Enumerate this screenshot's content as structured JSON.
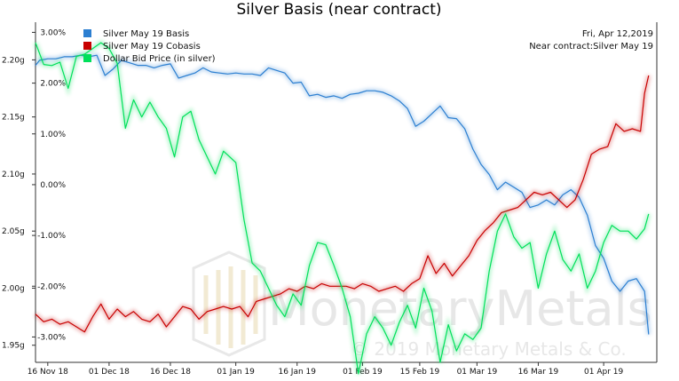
{
  "chart_data": {
    "type": "line",
    "title": "Silver Basis (near contract)",
    "date_text": "Fri, Apr 12,2019",
    "contract_text": "Near contract:Silver May 19",
    "watermark": {
      "brand": "MonetaryMetals",
      "copyright": "© 2019 Monetary Metals & Co."
    },
    "x_axis": {
      "range": [
        "2018-11-13",
        "2019-04-14"
      ],
      "tick_labels": [
        {
          "date": "2018-11-16",
          "label": "16 Nov 18"
        },
        {
          "date": "2018-12-01",
          "label": "01 Dec 18"
        },
        {
          "date": "2018-12-16",
          "label": "16 Dec 18"
        },
        {
          "date": "2019-01-01",
          "label": "01 Jan 19"
        },
        {
          "date": "2019-01-16",
          "label": "16 Jan 19"
        },
        {
          "date": "2019-02-01",
          "label": "01 Feb 19"
        },
        {
          "date": "2019-02-15",
          "label": "15 Feb 19"
        },
        {
          "date": "2019-03-01",
          "label": "01 Mar 19"
        },
        {
          "date": "2019-03-16",
          "label": "16 Mar 19"
        },
        {
          "date": "2019-04-01",
          "label": "01 Apr 19"
        }
      ]
    },
    "y_right": {
      "unit": "percent",
      "range": [
        -3.5,
        3.2
      ],
      "ticks": [
        3,
        2,
        1,
        0,
        -1,
        -2,
        -3
      ],
      "tick_labels": [
        "3.00%",
        "2.00%",
        "1.00%",
        "0.00%",
        "-1.00%",
        "-2.00%",
        "-3.00%"
      ]
    },
    "y_left": {
      "unit": "grams",
      "range": [
        1.935,
        2.233
      ],
      "ticks": [
        2.2,
        2.15,
        2.1,
        2.05,
        2.0,
        1.95
      ],
      "tick_labels": [
        "2.20g",
        "2.15g",
        "2.10g",
        "2.05g",
        "2.00g",
        "1.95g"
      ]
    },
    "legend": {
      "placement": "top-left",
      "items": [
        {
          "name": "Silver May 19 Basis",
          "color": "#2c7fd1"
        },
        {
          "name": "Silver May 19 Cobasis",
          "color": "#c80000"
        },
        {
          "name": "Dollar Bid Price (in silver)",
          "color": "#00e05a"
        }
      ]
    },
    "series": [
      {
        "name": "Silver May 19 Basis",
        "axis": "right",
        "color": "#2c7fd1",
        "points": [
          [
            "2018-11-13",
            2.35
          ],
          [
            "2018-11-14",
            2.45
          ],
          [
            "2018-11-16",
            2.48
          ],
          [
            "2018-11-18",
            2.48
          ],
          [
            "2018-11-20",
            2.52
          ],
          [
            "2018-11-22",
            2.52
          ],
          [
            "2018-11-24",
            2.55
          ],
          [
            "2018-11-26",
            2.52
          ],
          [
            "2018-11-28",
            2.55
          ],
          [
            "2018-11-30",
            2.15
          ],
          [
            "2018-12-02",
            2.28
          ],
          [
            "2018-12-04",
            2.45
          ],
          [
            "2018-12-06",
            2.4
          ],
          [
            "2018-12-08",
            2.35
          ],
          [
            "2018-12-10",
            2.35
          ],
          [
            "2018-12-12",
            2.3
          ],
          [
            "2018-12-14",
            2.35
          ],
          [
            "2018-12-16",
            2.38
          ],
          [
            "2018-12-18",
            2.1
          ],
          [
            "2018-12-20",
            2.15
          ],
          [
            "2018-12-22",
            2.2
          ],
          [
            "2018-12-24",
            2.3
          ],
          [
            "2018-12-26",
            2.22
          ],
          [
            "2018-12-28",
            2.2
          ],
          [
            "2018-12-30",
            2.18
          ],
          [
            "2019-01-01",
            2.2
          ],
          [
            "2019-01-03",
            2.18
          ],
          [
            "2019-01-05",
            2.18
          ],
          [
            "2019-01-07",
            2.15
          ],
          [
            "2019-01-09",
            2.3
          ],
          [
            "2019-01-11",
            2.25
          ],
          [
            "2019-01-13",
            2.2
          ],
          [
            "2019-01-15",
            2.0
          ],
          [
            "2019-01-17",
            2.02
          ],
          [
            "2019-01-19",
            1.75
          ],
          [
            "2019-01-21",
            1.78
          ],
          [
            "2019-01-23",
            1.72
          ],
          [
            "2019-01-25",
            1.75
          ],
          [
            "2019-01-27",
            1.7
          ],
          [
            "2019-01-29",
            1.78
          ],
          [
            "2019-01-31",
            1.8
          ],
          [
            "2019-02-02",
            1.85
          ],
          [
            "2019-02-04",
            1.85
          ],
          [
            "2019-02-06",
            1.82
          ],
          [
            "2019-02-08",
            1.75
          ],
          [
            "2019-02-10",
            1.65
          ],
          [
            "2019-02-12",
            1.5
          ],
          [
            "2019-02-14",
            1.15
          ],
          [
            "2019-02-16",
            1.25
          ],
          [
            "2019-02-18",
            1.4
          ],
          [
            "2019-02-20",
            1.55
          ],
          [
            "2019-02-22",
            1.32
          ],
          [
            "2019-02-24",
            1.3
          ],
          [
            "2019-02-26",
            1.1
          ],
          [
            "2019-02-28",
            0.7
          ],
          [
            "2019-03-02",
            0.4
          ],
          [
            "2019-03-04",
            0.2
          ],
          [
            "2019-03-06",
            -0.1
          ],
          [
            "2019-03-08",
            0.05
          ],
          [
            "2019-03-10",
            -0.05
          ],
          [
            "2019-03-12",
            -0.15
          ],
          [
            "2019-03-14",
            -0.45
          ],
          [
            "2019-03-16",
            -0.4
          ],
          [
            "2019-03-18",
            -0.3
          ],
          [
            "2019-03-20",
            -0.4
          ],
          [
            "2019-03-22",
            -0.2
          ],
          [
            "2019-03-24",
            -0.1
          ],
          [
            "2019-03-26",
            -0.25
          ],
          [
            "2019-03-28",
            -0.6
          ],
          [
            "2019-03-30",
            -1.2
          ],
          [
            "2019-04-01",
            -1.45
          ],
          [
            "2019-04-03",
            -1.9
          ],
          [
            "2019-04-05",
            -2.1
          ],
          [
            "2019-04-07",
            -1.9
          ],
          [
            "2019-04-09",
            -1.85
          ],
          [
            "2019-04-11",
            -2.1
          ],
          [
            "2019-04-12",
            -2.95
          ]
        ]
      },
      {
        "name": "Silver May 19 Cobasis",
        "axis": "right",
        "color": "#c80000",
        "points": [
          [
            "2018-11-13",
            -2.55
          ],
          [
            "2018-11-15",
            -2.7
          ],
          [
            "2018-11-17",
            -2.65
          ],
          [
            "2018-11-19",
            -2.75
          ],
          [
            "2018-11-21",
            -2.7
          ],
          [
            "2018-11-23",
            -2.8
          ],
          [
            "2018-11-25",
            -2.9
          ],
          [
            "2018-11-27",
            -2.6
          ],
          [
            "2018-11-29",
            -2.35
          ],
          [
            "2018-12-01",
            -2.65
          ],
          [
            "2018-12-03",
            -2.45
          ],
          [
            "2018-12-05",
            -2.6
          ],
          [
            "2018-12-07",
            -2.5
          ],
          [
            "2018-12-09",
            -2.65
          ],
          [
            "2018-12-11",
            -2.7
          ],
          [
            "2018-12-13",
            -2.55
          ],
          [
            "2018-12-15",
            -2.8
          ],
          [
            "2018-12-17",
            -2.6
          ],
          [
            "2018-12-19",
            -2.4
          ],
          [
            "2018-12-21",
            -2.45
          ],
          [
            "2018-12-23",
            -2.65
          ],
          [
            "2018-12-25",
            -2.5
          ],
          [
            "2018-12-27",
            -2.45
          ],
          [
            "2018-12-29",
            -2.4
          ],
          [
            "2018-12-31",
            -2.45
          ],
          [
            "2019-01-02",
            -2.4
          ],
          [
            "2019-01-04",
            -2.6
          ],
          [
            "2019-01-06",
            -2.3
          ],
          [
            "2019-01-08",
            -2.25
          ],
          [
            "2019-01-10",
            -2.2
          ],
          [
            "2019-01-12",
            -2.15
          ],
          [
            "2019-01-14",
            -2.05
          ],
          [
            "2019-01-16",
            -2.1
          ],
          [
            "2019-01-18",
            -2.0
          ],
          [
            "2019-01-20",
            -2.05
          ],
          [
            "2019-01-22",
            -1.95
          ],
          [
            "2019-01-24",
            -2.0
          ],
          [
            "2019-01-26",
            -2.0
          ],
          [
            "2019-01-28",
            -2.0
          ],
          [
            "2019-01-30",
            -2.05
          ],
          [
            "2019-02-01",
            -1.95
          ],
          [
            "2019-02-03",
            -2.0
          ],
          [
            "2019-02-05",
            -2.1
          ],
          [
            "2019-02-07",
            -2.05
          ],
          [
            "2019-02-09",
            -2.0
          ],
          [
            "2019-02-11",
            -2.1
          ],
          [
            "2019-02-13",
            -1.95
          ],
          [
            "2019-02-15",
            -1.85
          ],
          [
            "2019-02-17",
            -1.4
          ],
          [
            "2019-02-19",
            -1.75
          ],
          [
            "2019-02-21",
            -1.55
          ],
          [
            "2019-02-23",
            -1.8
          ],
          [
            "2019-02-25",
            -1.6
          ],
          [
            "2019-02-27",
            -1.4
          ],
          [
            "2019-03-01",
            -1.1
          ],
          [
            "2019-03-03",
            -0.9
          ],
          [
            "2019-03-05",
            -0.75
          ],
          [
            "2019-03-07",
            -0.55
          ],
          [
            "2019-03-09",
            -0.5
          ],
          [
            "2019-03-11",
            -0.45
          ],
          [
            "2019-03-13",
            -0.3
          ],
          [
            "2019-03-15",
            -0.15
          ],
          [
            "2019-03-17",
            -0.2
          ],
          [
            "2019-03-19",
            -0.15
          ],
          [
            "2019-03-21",
            -0.3
          ],
          [
            "2019-03-23",
            -0.45
          ],
          [
            "2019-03-25",
            -0.3
          ],
          [
            "2019-03-27",
            0.1
          ],
          [
            "2019-03-29",
            0.6
          ],
          [
            "2019-03-31",
            0.7
          ],
          [
            "2019-04-02",
            0.75
          ],
          [
            "2019-04-04",
            1.2
          ],
          [
            "2019-04-06",
            1.05
          ],
          [
            "2019-04-08",
            1.1
          ],
          [
            "2019-04-10",
            1.05
          ],
          [
            "2019-04-11",
            1.8
          ],
          [
            "2019-04-12",
            2.15
          ]
        ]
      },
      {
        "name": "Dollar Bid Price (in silver)",
        "axis": "left",
        "color": "#00e05a",
        "points": [
          [
            "2018-11-13",
            2.215
          ],
          [
            "2018-11-15",
            2.196
          ],
          [
            "2018-11-17",
            2.195
          ],
          [
            "2018-11-19",
            2.198
          ],
          [
            "2018-11-21",
            2.175
          ],
          [
            "2018-11-23",
            2.203
          ],
          [
            "2018-11-25",
            2.205
          ],
          [
            "2018-11-27",
            2.21
          ],
          [
            "2018-11-29",
            2.215
          ],
          [
            "2018-12-01",
            2.21
          ],
          [
            "2018-12-03",
            2.197
          ],
          [
            "2018-12-05",
            2.14
          ],
          [
            "2018-12-07",
            2.165
          ],
          [
            "2018-12-09",
            2.15
          ],
          [
            "2018-12-11",
            2.163
          ],
          [
            "2018-12-13",
            2.15
          ],
          [
            "2018-12-15",
            2.14
          ],
          [
            "2018-12-17",
            2.115
          ],
          [
            "2018-12-19",
            2.15
          ],
          [
            "2018-12-21",
            2.155
          ],
          [
            "2018-12-23",
            2.13
          ],
          [
            "2018-12-25",
            2.115
          ],
          [
            "2018-12-27",
            2.1
          ],
          [
            "2018-12-29",
            2.12
          ],
          [
            "2019-01-01",
            2.11
          ],
          [
            "2019-01-03",
            2.06
          ],
          [
            "2019-01-05",
            2.022
          ],
          [
            "2019-01-07",
            2.015
          ],
          [
            "2019-01-09",
            2.0
          ],
          [
            "2019-01-11",
            1.985
          ],
          [
            "2019-01-13",
            1.975
          ],
          [
            "2019-01-15",
            1.995
          ],
          [
            "2019-01-17",
            1.985
          ],
          [
            "2019-01-19",
            2.02
          ],
          [
            "2019-01-21",
            2.04
          ],
          [
            "2019-01-23",
            2.038
          ],
          [
            "2019-01-25",
            2.02
          ],
          [
            "2019-01-27",
            2.0
          ],
          [
            "2019-01-29",
            1.975
          ],
          [
            "2019-01-31",
            1.925
          ],
          [
            "2019-02-02",
            1.96
          ],
          [
            "2019-02-04",
            1.975
          ],
          [
            "2019-02-06",
            1.965
          ],
          [
            "2019-02-08",
            1.95
          ],
          [
            "2019-02-10",
            1.97
          ],
          [
            "2019-02-12",
            1.985
          ],
          [
            "2019-02-14",
            1.965
          ],
          [
            "2019-02-16",
            2.0
          ],
          [
            "2019-02-18",
            1.98
          ],
          [
            "2019-02-20",
            1.935
          ],
          [
            "2019-02-22",
            1.968
          ],
          [
            "2019-02-24",
            1.945
          ],
          [
            "2019-02-26",
            1.96
          ],
          [
            "2019-02-28",
            1.955
          ],
          [
            "2019-03-02",
            1.965
          ],
          [
            "2019-03-04",
            2.015
          ],
          [
            "2019-03-06",
            2.05
          ],
          [
            "2019-03-08",
            2.065
          ],
          [
            "2019-03-10",
            2.045
          ],
          [
            "2019-03-12",
            2.035
          ],
          [
            "2019-03-14",
            2.04
          ],
          [
            "2019-03-16",
            2.0
          ],
          [
            "2019-03-18",
            2.03
          ],
          [
            "2019-03-20",
            2.05
          ],
          [
            "2019-03-22",
            2.025
          ],
          [
            "2019-03-24",
            2.015
          ],
          [
            "2019-03-26",
            2.03
          ],
          [
            "2019-03-28",
            2.0
          ],
          [
            "2019-03-30",
            2.015
          ],
          [
            "2019-04-01",
            2.04
          ],
          [
            "2019-04-03",
            2.055
          ],
          [
            "2019-04-05",
            2.05
          ],
          [
            "2019-04-07",
            2.05
          ],
          [
            "2019-04-09",
            2.043
          ],
          [
            "2019-04-11",
            2.052
          ],
          [
            "2019-04-12",
            2.065
          ]
        ]
      }
    ]
  }
}
